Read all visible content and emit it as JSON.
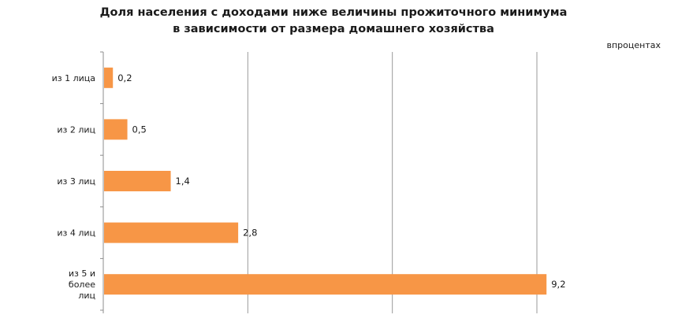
{
  "chart_data": {
    "type": "bar",
    "orientation": "horizontal",
    "title": "Доля населения с доходами ниже величины прожиточного минимума",
    "subtitle": "в зависимости от размера домашнего хозяйства",
    "unit_note": "впроцентах",
    "categories": [
      "из 1 лица",
      "из 2 лиц",
      "из 3 лиц",
      "из 4 лиц",
      "из 5 и более лиц"
    ],
    "category_lines": [
      [
        "из 1 лица"
      ],
      [
        "из 2 лиц"
      ],
      [
        "из 3 лиц"
      ],
      [
        "из 4 лиц"
      ],
      [
        "из 5 и",
        "более",
        "лиц"
      ]
    ],
    "values": [
      0.2,
      0.5,
      1.4,
      2.8,
      9.2
    ],
    "value_labels": [
      "0,2",
      "0,5",
      "1,4",
      "2,8",
      "9,2"
    ],
    "xlim": [
      0,
      10
    ],
    "x_gridlines": [
      0,
      3,
      6,
      9
    ],
    "bar_color": "#F79646",
    "grid": true,
    "legend": "none",
    "xlabel": "",
    "ylabel": ""
  }
}
